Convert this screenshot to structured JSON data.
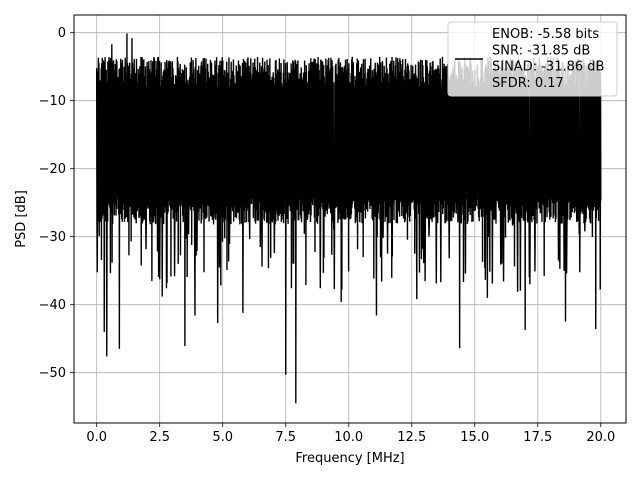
{
  "chart_data": {
    "type": "line",
    "title": "",
    "xlabel": "Frequency [MHz]",
    "ylabel": "PSD [dB]",
    "xlim": [
      -0.9,
      21.0
    ],
    "ylim": [
      -57.4,
      2.6
    ],
    "xticks": [
      0.0,
      2.5,
      5.0,
      7.5,
      10.0,
      12.5,
      15.0,
      17.5,
      20.0
    ],
    "xtick_labels": [
      "0.0",
      "2.5",
      "5.0",
      "7.5",
      "10.0",
      "12.5",
      "15.0",
      "17.5",
      "20.0"
    ],
    "yticks": [
      0,
      -10,
      -20,
      -30,
      -40,
      -50
    ],
    "ytick_labels": [
      "0",
      "−10",
      "−20",
      "−30",
      "−40",
      "−50"
    ],
    "grid": true,
    "legend_position": "top-right",
    "series": [
      {
        "name": "ENOB: -5.58 bits\nSNR: -31.85 dB\nSINAD: -31.86 dB\nSFDR: 0.17",
        "color": "#000000",
        "x_range": [
          0.0,
          20.0
        ],
        "envelope_top_db": -3.5,
        "envelope_bottom_db": -27.0,
        "notable_peaks": [
          {
            "x": 1.2,
            "y": -0.1
          },
          {
            "x": 1.4,
            "y": -0.8
          },
          {
            "x": 0.6,
            "y": -1.7
          }
        ],
        "notable_dips": [
          {
            "x": 7.9,
            "y": -54.5
          },
          {
            "x": 7.5,
            "y": -50.3
          },
          {
            "x": 0.4,
            "y": -47.6
          },
          {
            "x": 14.4,
            "y": -46.4
          },
          {
            "x": 0.9,
            "y": -46.5
          },
          {
            "x": 3.5,
            "y": -46.1
          },
          {
            "x": 0.3,
            "y": -44.0
          },
          {
            "x": 18.6,
            "y": -42.5
          },
          {
            "x": 19.8,
            "y": -43.6
          },
          {
            "x": 17.0,
            "y": -43.7
          },
          {
            "x": 5.8,
            "y": -41.2
          },
          {
            "x": 4.8,
            "y": -42.7
          },
          {
            "x": 3.9,
            "y": -41.6
          },
          {
            "x": 11.1,
            "y": -41.6
          },
          {
            "x": 15.5,
            "y": -39.0
          },
          {
            "x": 16.7,
            "y": -38.1
          },
          {
            "x": 9.7,
            "y": -39.6
          },
          {
            "x": 8.3,
            "y": -37.1
          },
          {
            "x": 2.6,
            "y": -38.8
          },
          {
            "x": 12.7,
            "y": -39.2
          }
        ]
      }
    ],
    "legend_lines": [
      "ENOB: -5.58 bits",
      "SNR: -31.85 dB",
      "SINAD: -31.86 dB",
      "SFDR: 0.17"
    ]
  }
}
